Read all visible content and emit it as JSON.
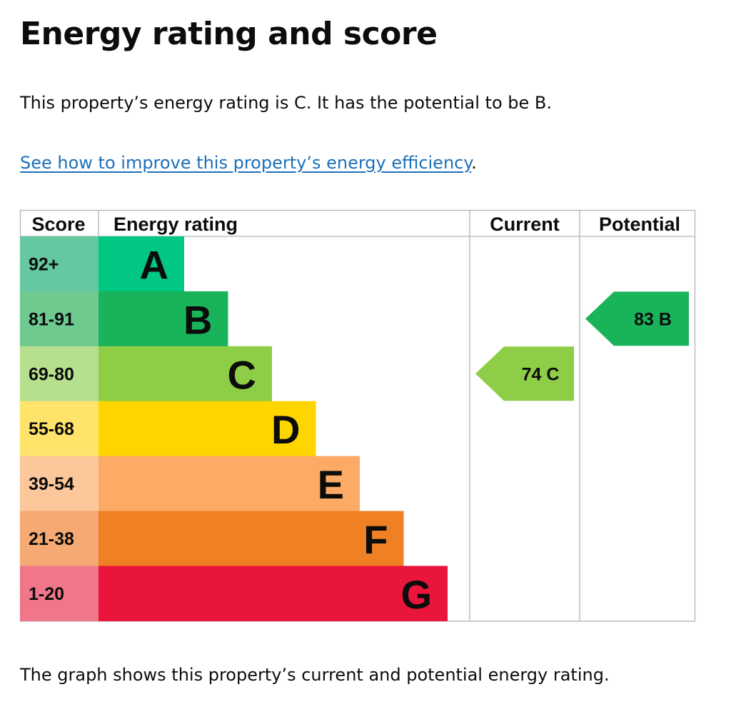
{
  "page": {
    "title": "Energy rating and score",
    "summary": "This property’s energy rating is C. It has the potential to be B.",
    "improve_link": "See how to improve this property’s energy efficiency",
    "improve_suffix": ".",
    "footnote": "The graph shows this property’s current and potential energy rating."
  },
  "colors": {
    "A": "#00c781",
    "B": "#19b459",
    "C": "#8dce46",
    "D": "#ffd500",
    "E": "#fcaa65",
    "F": "#ef8023",
    "G": "#e9153b",
    "text": "#0b0c0c",
    "link": "#1d70b8",
    "grid": "#b1b4b6"
  },
  "chart_data": {
    "type": "table",
    "headers": {
      "score": "Score",
      "rating": "Energy rating",
      "current": "Current",
      "potential": "Potential"
    },
    "bands": [
      {
        "letter": "A",
        "score": "92+",
        "color": "#00c781",
        "score_bg": "#66c8a1",
        "level": 1
      },
      {
        "letter": "B",
        "score": "81-91",
        "color": "#19b459",
        "score_bg": "#6fca8f",
        "level": 2
      },
      {
        "letter": "C",
        "score": "69-80",
        "color": "#8dce46",
        "score_bg": "#b7e08e",
        "level": 3
      },
      {
        "letter": "D",
        "score": "55-68",
        "color": "#ffd500",
        "score_bg": "#ffe36b",
        "level": 4
      },
      {
        "letter": "E",
        "score": "39-54",
        "color": "#fcaa65",
        "score_bg": "#fcc79a",
        "level": 5
      },
      {
        "letter": "F",
        "score": "21-38",
        "color": "#ef8023",
        "score_bg": "#f4aa72",
        "level": 6
      },
      {
        "letter": "G",
        "score": "1-20",
        "color": "#e9153b",
        "score_bg": "#f07689",
        "level": 7
      }
    ],
    "current": {
      "score": 74,
      "band": "C",
      "label": "74  C"
    },
    "potential": {
      "score": 83,
      "band": "B",
      "label": "83  B"
    }
  }
}
